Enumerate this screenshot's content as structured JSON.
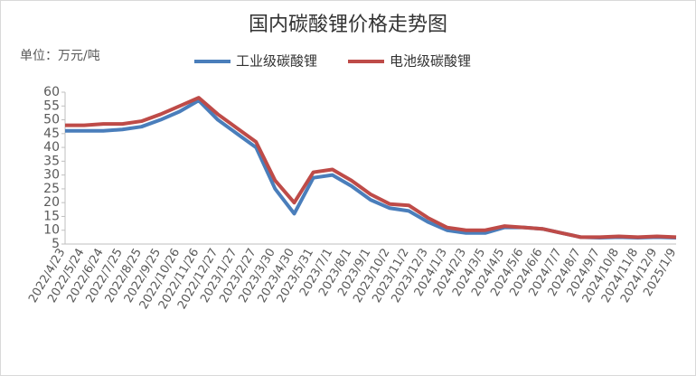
{
  "chart_data": {
    "type": "line",
    "title": "国内碳酸锂价格走势图",
    "unit_label": "单位：万元/吨",
    "categories": [
      "2022/4/23",
      "2022/5/24",
      "2022/6/24",
      "2022/7/25",
      "2022/8/25",
      "2022/9/25",
      "2022/10/26",
      "2022/11/26",
      "2022/12/27",
      "2023/1/27",
      "2023/2/27",
      "2023/3/30",
      "2023/4/30",
      "2023/5/31",
      "2023/7/1",
      "2023/8/1",
      "2023/9/1",
      "2023/10/2",
      "2023/11/2",
      "2023/12/3",
      "2024/1/3",
      "2024/2/3",
      "2024/3/5",
      "2024/4/5",
      "2024/5/6",
      "2024/6/6",
      "2024/7/7",
      "2024/8/7",
      "2024/9/7",
      "2024/10/8",
      "2024/11/8",
      "2024/12/9",
      "2025/1/9"
    ],
    "series": [
      {
        "name": "工业级碳酸锂",
        "color": "#4a7ebb",
        "values": [
          46,
          46,
          46,
          46.5,
          47.5,
          50,
          53,
          57,
          50,
          45,
          40,
          25,
          16,
          29,
          30,
          26,
          21,
          18,
          17,
          13,
          10,
          9,
          9,
          11,
          11,
          10.5,
          9,
          7.5,
          7.3,
          7.5,
          7.3,
          7.5,
          7.3
        ]
      },
      {
        "name": "电池级碳酸锂",
        "color": "#be4b48",
        "values": [
          48,
          48,
          48.5,
          48.5,
          49.5,
          52,
          55,
          58,
          52,
          47,
          42,
          28,
          20,
          31,
          32,
          28,
          23,
          19.5,
          19,
          14.5,
          11,
          10,
          10,
          11.5,
          11,
          10.5,
          9,
          7.5,
          7.5,
          7.8,
          7.5,
          7.8,
          7.5
        ]
      }
    ],
    "ylim": [
      5,
      60
    ],
    "yticks": [
      5,
      10,
      15,
      20,
      25,
      30,
      35,
      40,
      45,
      50,
      55,
      60
    ]
  }
}
